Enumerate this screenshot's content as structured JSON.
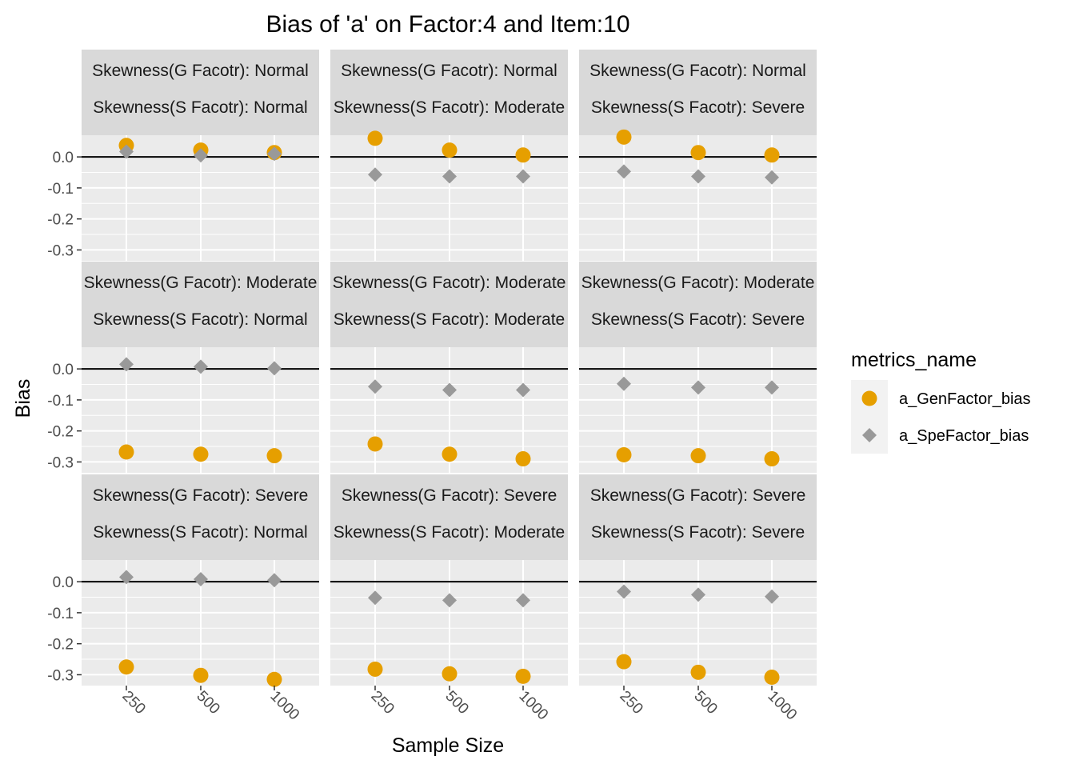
{
  "chart_data": {
    "type": "scatter",
    "title": "Bias of 'a' on Factor:4 and Item:10",
    "xlabel": "Sample Size",
    "ylabel": "Bias",
    "x_categories": [
      "250",
      "500",
      "1000"
    ],
    "y_ticks": [
      0.0,
      -0.1,
      -0.2,
      -0.3
    ],
    "y_tick_labels": [
      "0.0",
      "-0.1",
      "-0.2",
      "-0.3"
    ],
    "ylim": [
      -0.335,
      0.07
    ],
    "reference_line": 0.0,
    "legend": {
      "title": "metrics_name",
      "position": "right",
      "entries": [
        {
          "label": "a_GenFactor_bias",
          "color": "#E69F00",
          "shape": "circle"
        },
        {
          "label": "a_SpeFactor_bias",
          "color": "#999999",
          "shape": "diamond"
        }
      ]
    },
    "colors": {
      "panel_bg": "#EBEBEB",
      "strip_bg": "#D9D9D9",
      "gridline": "#FFFFFF",
      "axis_text": "#4D4D4D",
      "gen": "#E69F00",
      "spe": "#999999"
    },
    "facets": [
      {
        "row": 0,
        "col": 0,
        "strip_g": "Skewness(G Facotr): Normal",
        "strip_s": "Skewness(S Facotr): Normal",
        "series": [
          {
            "name": "a_GenFactor_bias",
            "values": [
              0.037,
              0.022,
              0.014
            ]
          },
          {
            "name": "a_SpeFactor_bias",
            "values": [
              0.017,
              0.005,
              0.01
            ]
          }
        ]
      },
      {
        "row": 0,
        "col": 1,
        "strip_g": "Skewness(G Facotr): Normal",
        "strip_s": "Skewness(S Facotr): Moderate",
        "series": [
          {
            "name": "a_GenFactor_bias",
            "values": [
              0.06,
              0.022,
              0.006
            ]
          },
          {
            "name": "a_SpeFactor_bias",
            "values": [
              -0.057,
              -0.063,
              -0.063
            ]
          }
        ]
      },
      {
        "row": 0,
        "col": 2,
        "strip_g": "Skewness(G Facotr): Normal",
        "strip_s": "Skewness(S Facotr): Severe",
        "series": [
          {
            "name": "a_GenFactor_bias",
            "values": [
              0.064,
              0.014,
              0.006
            ]
          },
          {
            "name": "a_SpeFactor_bias",
            "values": [
              -0.047,
              -0.063,
              -0.066
            ]
          }
        ]
      },
      {
        "row": 1,
        "col": 0,
        "strip_g": "Skewness(G Facotr): Moderate",
        "strip_s": "Skewness(S Facotr): Normal",
        "series": [
          {
            "name": "a_GenFactor_bias",
            "values": [
              -0.268,
              -0.275,
              -0.28
            ]
          },
          {
            "name": "a_SpeFactor_bias",
            "values": [
              0.015,
              0.007,
              0.002
            ]
          }
        ]
      },
      {
        "row": 1,
        "col": 1,
        "strip_g": "Skewness(G Facotr): Moderate",
        "strip_s": "Skewness(S Facotr): Moderate",
        "series": [
          {
            "name": "a_GenFactor_bias",
            "values": [
              -0.242,
              -0.275,
              -0.29
            ]
          },
          {
            "name": "a_SpeFactor_bias",
            "values": [
              -0.057,
              -0.068,
              -0.068
            ]
          }
        ]
      },
      {
        "row": 1,
        "col": 2,
        "strip_g": "Skewness(G Facotr): Moderate",
        "strip_s": "Skewness(S Facotr): Severe",
        "series": [
          {
            "name": "a_GenFactor_bias",
            "values": [
              -0.277,
              -0.28,
              -0.29
            ]
          },
          {
            "name": "a_SpeFactor_bias",
            "values": [
              -0.048,
              -0.06,
              -0.06
            ]
          }
        ]
      },
      {
        "row": 2,
        "col": 0,
        "strip_g": "Skewness(G Facotr): Severe",
        "strip_s": "Skewness(S Facotr): Normal",
        "series": [
          {
            "name": "a_GenFactor_bias",
            "values": [
              -0.275,
              -0.302,
              -0.315
            ]
          },
          {
            "name": "a_SpeFactor_bias",
            "values": [
              0.015,
              0.008,
              0.005
            ]
          }
        ]
      },
      {
        "row": 2,
        "col": 1,
        "strip_g": "Skewness(G Facotr): Severe",
        "strip_s": "Skewness(S Facotr): Moderate",
        "series": [
          {
            "name": "a_GenFactor_bias",
            "values": [
              -0.282,
              -0.297,
              -0.305
            ]
          },
          {
            "name": "a_SpeFactor_bias",
            "values": [
              -0.052,
              -0.06,
              -0.06
            ]
          }
        ]
      },
      {
        "row": 2,
        "col": 2,
        "strip_g": "Skewness(G Facotr): Severe",
        "strip_s": "Skewness(S Facotr): Severe",
        "series": [
          {
            "name": "a_GenFactor_bias",
            "values": [
              -0.258,
              -0.292,
              -0.308
            ]
          },
          {
            "name": "a_SpeFactor_bias",
            "values": [
              -0.032,
              -0.042,
              -0.048
            ]
          }
        ]
      }
    ]
  }
}
